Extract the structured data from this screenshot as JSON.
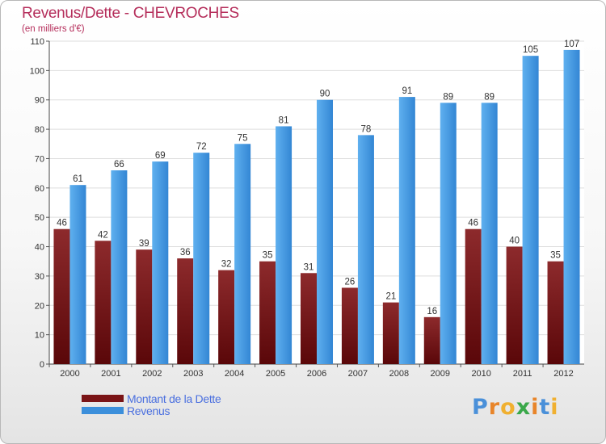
{
  "chart_data": {
    "type": "bar",
    "title": "Revenus/Dette - CHEVROCHES",
    "subtitle": "(en milliers d'€)",
    "categories": [
      "2000",
      "2001",
      "2002",
      "2003",
      "2004",
      "2005",
      "2006",
      "2007",
      "2008",
      "2009",
      "2010",
      "2011",
      "2012"
    ],
    "series": [
      {
        "name": "Montant de la Dette",
        "color": "#7a1416",
        "values": [
          46,
          42,
          39,
          36,
          32,
          35,
          31,
          26,
          21,
          16,
          46,
          40,
          35
        ]
      },
      {
        "name": "Revenus",
        "color": "#3c8fdb",
        "values": [
          61,
          66,
          69,
          72,
          75,
          81,
          90,
          78,
          91,
          89,
          89,
          105,
          107
        ]
      }
    ],
    "yticks": [
      0,
      10,
      20,
      30,
      40,
      50,
      60,
      70,
      80,
      90,
      100,
      110
    ],
    "ylim": [
      0,
      110
    ],
    "xlabel": "",
    "ylabel": "",
    "grid": true,
    "legend_position": "bottom-left"
  },
  "logo": {
    "letters": [
      "P",
      "r",
      "o",
      "x",
      "i",
      "t",
      "i"
    ],
    "colors": [
      "#4a90d9",
      "#e8852a",
      "#f0b030",
      "#3aa84a",
      "#e8852a",
      "#4a90d9",
      "#f0b030"
    ]
  }
}
